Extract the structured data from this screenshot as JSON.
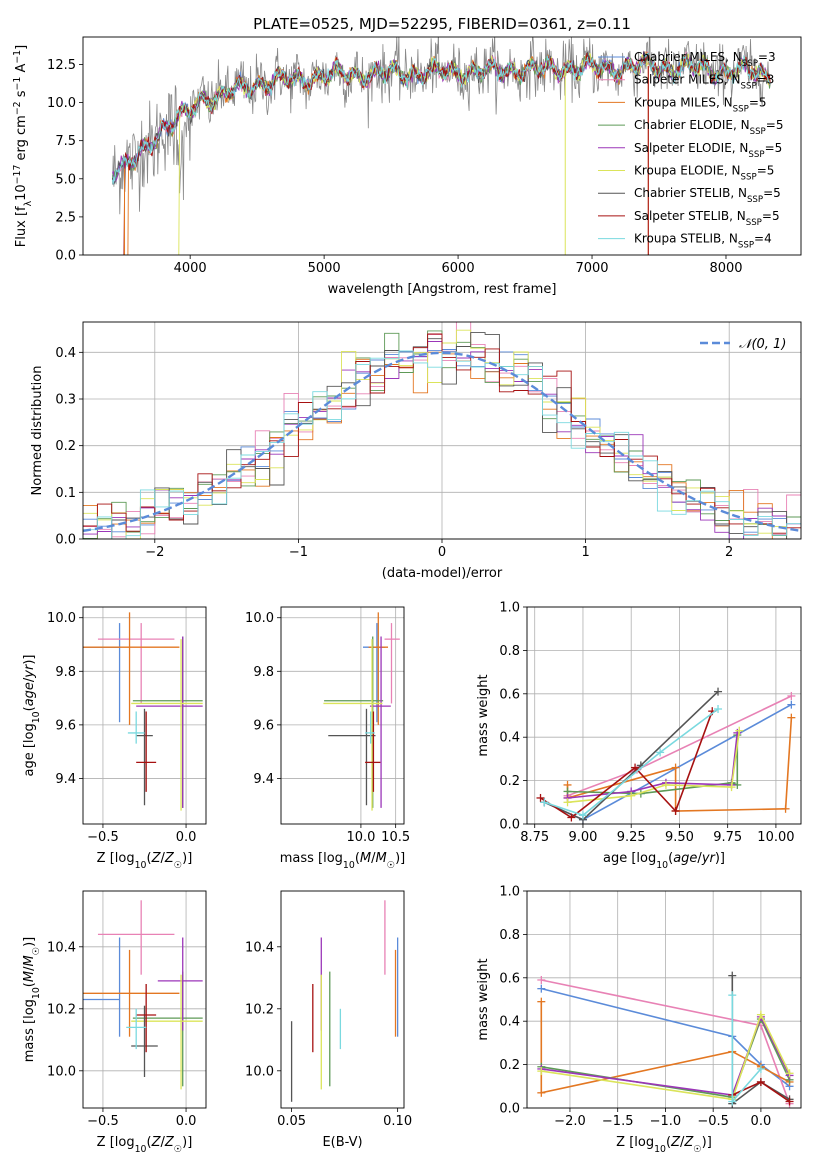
{
  "colors": {
    "blue": "#5b8bd9",
    "orange": "#e37722",
    "green": "#5e9a57",
    "purple": "#9b36b8",
    "yellow": "#dbe45a",
    "gray": "#555555",
    "red": "#a61111",
    "cyan": "#7ad9df",
    "pink": "#e882b5",
    "data": "#888888",
    "grid": "#b0b0b0"
  },
  "chart_data": [
    {
      "id": "spectrum",
      "type": "line",
      "title": "PLATE=0525, MJD=52295, FIBERID=0361, z=0.11",
      "xlabel": "wavelength [Angstrom, rest frame]",
      "ylabel": "Flux [f_λ10^-17 erg cm^-2 s^-1 A^-1]",
      "xlim": [
        3200,
        8560
      ],
      "ylim": [
        0,
        14.3
      ],
      "xticks": [
        4000,
        5000,
        6000,
        7000,
        8000
      ],
      "yticks": [
        0.0,
        2.5,
        5.0,
        7.5,
        10.0,
        12.5
      ],
      "grid": false,
      "legend_position": "right",
      "legend": [
        {
          "main": "Chabrier MILES, N",
          "sub": "SSP",
          "tail": "=3",
          "color": "blue"
        },
        {
          "main": "Salpeter MILES, N",
          "sub": "SSP",
          "tail": "=3",
          "color": "pink"
        },
        {
          "main": "Kroupa MILES, N",
          "sub": "SSP",
          "tail": "=5",
          "color": "orange"
        },
        {
          "main": "Chabrier ELODIE, N",
          "sub": "SSP",
          "tail": "=5",
          "color": "green"
        },
        {
          "main": "Salpeter ELODIE, N",
          "sub": "SSP",
          "tail": "=5",
          "color": "purple"
        },
        {
          "main": "Kroupa ELODIE, N",
          "sub": "SSP",
          "tail": "=5",
          "color": "yellow"
        },
        {
          "main": "Chabrier STELIB, N",
          "sub": "SSP",
          "tail": "=5",
          "color": "gray"
        },
        {
          "main": "Salpeter STELIB, N",
          "sub": "SSP",
          "tail": "=5",
          "color": "red"
        },
        {
          "main": "Kroupa STELIB, N",
          "sub": "SSP",
          "tail": "=4",
          "color": "cyan"
        }
      ],
      "continuum": {
        "x": [
          3420,
          3500,
          3600,
          3700,
          3800,
          3900,
          4000,
          4100,
          4200,
          4300,
          4400,
          4500,
          4600,
          4700,
          4800,
          4900,
          5000,
          5200,
          5400,
          5600,
          5800,
          6000,
          6200,
          6400,
          6600,
          6800,
          7000,
          7200,
          7400,
          7600,
          7800,
          8000,
          8200,
          8330
        ],
        "y": [
          5.5,
          5.6,
          6.3,
          7.5,
          8.3,
          8.7,
          9.5,
          10.4,
          10.3,
          10.6,
          11.0,
          11.3,
          11.3,
          11.4,
          11.5,
          11.7,
          11.7,
          11.9,
          11.8,
          12.0,
          11.9,
          12.1,
          12.0,
          12.2,
          12.1,
          12.3,
          12.2,
          12.3,
          12.4,
          12.3,
          12.2,
          12.1,
          12.0,
          11.8
        ]
      },
      "models_start": {
        "Salpeter STELIB": 3510,
        "Kroupa MILES": 3540,
        "Kroupa STELIB": 3420,
        "Kroupa ELODIE": 3920
      }
    },
    {
      "id": "residuals",
      "type": "histogram",
      "xlabel": "(data-model)/error",
      "ylabel": "Normed distribution",
      "xlim": [
        -2.5,
        2.5
      ],
      "ylim": [
        0,
        0.465
      ],
      "xticks": [
        -2,
        -1,
        0,
        1,
        2
      ],
      "yticks": [
        0.0,
        0.1,
        0.2,
        0.3,
        0.4
      ],
      "grid": true,
      "legend_position": "top-right",
      "legend": "𝒩(0, 1)",
      "bin_width": 0.1,
      "bin_start": -2.5
    },
    {
      "id": "age-vs-Z",
      "type": "errorbar",
      "xlabel": "Z [log10(Z/Z☉)]",
      "ylabel": "age [log10(age/yr)]",
      "xlim": [
        -0.62,
        0.12
      ],
      "ylim": [
        9.23,
        10.04
      ],
      "xticks": [
        -0.5,
        0.0
      ],
      "yticks": [
        9.4,
        9.6,
        9.8,
        10.0
      ],
      "grid": true,
      "points": [
        {
          "color": "blue",
          "x": -0.4,
          "xerr": [
            0.22,
            0.0
          ],
          "y": 9.89,
          "yerr": [
            0.28,
            0.09
          ]
        },
        {
          "color": "pink",
          "x": -0.27,
          "xerr": [
            0.26,
            0.2
          ],
          "y": 9.92,
          "yerr": [
            0.24,
            0.06
          ]
        },
        {
          "color": "orange",
          "x": -0.34,
          "xerr": [
            0.28,
            0.3
          ],
          "y": 9.89,
          "yerr": [
            0.29,
            0.13
          ]
        },
        {
          "color": "green",
          "x": -0.02,
          "xerr": [
            0.3,
            0.12
          ],
          "y": 9.69,
          "yerr": [
            0.4,
            0.24
          ]
        },
        {
          "color": "purple",
          "x": -0.02,
          "xerr": [
            0.28,
            0.12
          ],
          "y": 9.67,
          "yerr": [
            0.38,
            0.26
          ]
        },
        {
          "color": "yellow",
          "x": -0.03,
          "xerr": [
            0.3,
            0.13
          ],
          "y": 9.68,
          "yerr": [
            0.4,
            0.24
          ]
        },
        {
          "color": "gray",
          "x": -0.25,
          "xerr": [
            0.05,
            0.05
          ],
          "y": 9.56,
          "yerr": [
            0.26,
            0.1
          ]
        },
        {
          "color": "red",
          "x": -0.24,
          "xerr": [
            0.06,
            0.06
          ],
          "y": 9.46,
          "yerr": [
            0.11,
            0.19
          ]
        },
        {
          "color": "cyan",
          "x": -0.3,
          "xerr": [
            0.05,
            0.05
          ],
          "y": 9.57,
          "yerr": [
            0.04,
            0.08
          ]
        }
      ]
    },
    {
      "id": "age-vs-mass",
      "type": "errorbar",
      "xlabel": "mass [log10(M/M☉)]",
      "ylabel": "",
      "xlim": [
        8.85,
        10.62
      ],
      "ylim": [
        9.23,
        10.04
      ],
      "xticks": [
        10.0,
        10.5
      ],
      "yticks": [
        9.4,
        9.6,
        9.8,
        10.0
      ],
      "grid": true,
      "points": [
        {
          "color": "blue",
          "x": 10.23,
          "xerr": [
            0.2,
            0.12
          ],
          "y": 9.89,
          "yerr": [
            0.28,
            0.09
          ]
        },
        {
          "color": "pink",
          "x": 10.44,
          "xerr": [
            0.1,
            0.12
          ],
          "y": 9.92,
          "yerr": [
            0.24,
            0.06
          ]
        },
        {
          "color": "orange",
          "x": 10.25,
          "xerr": [
            0.14,
            0.14
          ],
          "y": 9.89,
          "yerr": [
            0.29,
            0.13
          ]
        },
        {
          "color": "green",
          "x": 10.17,
          "xerr": [
            0.7,
            0.15
          ],
          "y": 9.69,
          "yerr": [
            0.4,
            0.24
          ]
        },
        {
          "color": "purple",
          "x": 10.29,
          "xerr": [
            0.16,
            0.14
          ],
          "y": 9.67,
          "yerr": [
            0.38,
            0.26
          ]
        },
        {
          "color": "yellow",
          "x": 10.16,
          "xerr": [
            0.7,
            0.15
          ],
          "y": 9.68,
          "yerr": [
            0.4,
            0.24
          ]
        },
        {
          "color": "gray",
          "x": 10.08,
          "xerr": [
            0.55,
            0.13
          ],
          "y": 9.56,
          "yerr": [
            0.26,
            0.1
          ]
        },
        {
          "color": "red",
          "x": 10.18,
          "xerr": [
            0.12,
            0.1
          ],
          "y": 9.46,
          "yerr": [
            0.11,
            0.19
          ]
        },
        {
          "color": "cyan",
          "x": 10.14,
          "xerr": [
            0.08,
            0.06
          ],
          "y": 9.57,
          "yerr": [
            0.04,
            0.08
          ]
        }
      ]
    },
    {
      "id": "mass-vs-Z",
      "type": "errorbar",
      "xlabel": "Z [log10(Z/Z☉)]",
      "ylabel": "mass [log10(M/M☉)]",
      "xlim": [
        -0.62,
        0.12
      ],
      "ylim": [
        9.88,
        10.58
      ],
      "xticks": [
        -0.5,
        0.0
      ],
      "yticks": [
        10.0,
        10.2,
        10.4
      ],
      "grid": true,
      "points": [
        {
          "color": "blue",
          "x": -0.4,
          "xerr": [
            0.22,
            0.0
          ],
          "y": 10.23,
          "yerr": [
            0.12,
            0.2
          ]
        },
        {
          "color": "pink",
          "x": -0.27,
          "xerr": [
            0.26,
            0.2
          ],
          "y": 10.44,
          "yerr": [
            0.13,
            0.11
          ]
        },
        {
          "color": "orange",
          "x": -0.34,
          "xerr": [
            0.28,
            0.3
          ],
          "y": 10.25,
          "yerr": [
            0.14,
            0.14
          ]
        },
        {
          "color": "green",
          "x": -0.02,
          "xerr": [
            0.3,
            0.12
          ],
          "y": 10.17,
          "yerr": [
            0.22,
            0.15
          ]
        },
        {
          "color": "purple",
          "x": -0.02,
          "xerr": [
            0.15,
            0.12
          ],
          "y": 10.29,
          "yerr": [
            0.16,
            0.14
          ]
        },
        {
          "color": "yellow",
          "x": -0.03,
          "xerr": [
            0.3,
            0.13
          ],
          "y": 10.16,
          "yerr": [
            0.22,
            0.15
          ]
        },
        {
          "color": "gray",
          "x": -0.25,
          "xerr": [
            0.08,
            0.08
          ],
          "y": 10.08,
          "yerr": [
            0.1,
            0.13
          ]
        },
        {
          "color": "red",
          "x": -0.24,
          "xerr": [
            0.06,
            0.06
          ],
          "y": 10.18,
          "yerr": [
            0.12,
            0.1
          ]
        },
        {
          "color": "cyan",
          "x": -0.3,
          "xerr": [
            0.06,
            0.06
          ],
          "y": 10.14,
          "yerr": [
            0.07,
            0.06
          ]
        }
      ]
    },
    {
      "id": "mass-vs-EBV",
      "type": "errorbar",
      "xlabel": "E(B-V)",
      "ylabel": "",
      "xlim": [
        0.045,
        0.103
      ],
      "ylim": [
        9.88,
        10.58
      ],
      "xticks": [
        0.05,
        0.1
      ],
      "yticks": [
        10.0,
        10.2,
        10.4
      ],
      "grid": false,
      "points": [
        {
          "color": "blue",
          "x": 0.1,
          "y": 10.23,
          "yerr": [
            0.12,
            0.2
          ]
        },
        {
          "color": "pink",
          "x": 0.094,
          "y": 10.44,
          "yerr": [
            0.13,
            0.11
          ]
        },
        {
          "color": "orange",
          "x": 0.099,
          "y": 10.25,
          "yerr": [
            0.14,
            0.14
          ]
        },
        {
          "color": "green",
          "x": 0.068,
          "y": 10.17,
          "yerr": [
            0.22,
            0.15
          ]
        },
        {
          "color": "purple",
          "x": 0.064,
          "y": 10.29,
          "yerr": [
            0.16,
            0.14
          ]
        },
        {
          "color": "yellow",
          "x": 0.064,
          "y": 10.16,
          "yerr": [
            0.22,
            0.15
          ]
        },
        {
          "color": "gray",
          "x": 0.05,
          "y": 10.08,
          "yerr": [
            0.18,
            0.08
          ]
        },
        {
          "color": "red",
          "x": 0.06,
          "y": 10.18,
          "yerr": [
            0.12,
            0.1
          ]
        },
        {
          "color": "cyan",
          "x": 0.073,
          "y": 10.14,
          "yerr": [
            0.07,
            0.06
          ]
        }
      ]
    },
    {
      "id": "weight-vs-age",
      "type": "line",
      "xlabel": "age [log10(age/yr)]",
      "ylabel": "mass weight",
      "xlim": [
        8.71,
        10.13
      ],
      "ylim": [
        0,
        1
      ],
      "xticks": [
        8.75,
        9.0,
        9.25,
        9.5,
        9.75,
        10.0
      ],
      "yticks": [
        0.0,
        0.2,
        0.4,
        0.6,
        0.8,
        1.0
      ],
      "grid": true,
      "series": [
        {
          "color": "blue",
          "x": [
            8.8,
            9.0,
            10.08
          ],
          "y": [
            0.1,
            0.02,
            0.55
          ]
        },
        {
          "color": "pink",
          "x": [
            8.92,
            9.28,
            10.08
          ],
          "y": [
            0.13,
            0.25,
            0.59
          ]
        },
        {
          "color": "orange",
          "x": [
            10.08,
            10.05,
            9.48,
            9.48,
            8.92,
            8.92
          ],
          "y": [
            0.49,
            0.07,
            0.06,
            0.26,
            0.12,
            0.18
          ]
        },
        {
          "color": "green",
          "x": [
            8.92,
            9.3,
            9.77,
            9.8,
            9.8
          ],
          "y": [
            0.15,
            0.14,
            0.19,
            0.18,
            0.41
          ]
        },
        {
          "color": "purple",
          "x": [
            8.92,
            9.25,
            9.43,
            9.77,
            9.8
          ],
          "y": [
            0.12,
            0.15,
            0.19,
            0.18,
            0.42
          ]
        },
        {
          "color": "yellow",
          "x": [
            8.92,
            9.25,
            9.43,
            9.77,
            9.81
          ],
          "y": [
            0.1,
            0.13,
            0.18,
            0.17,
            0.43
          ]
        },
        {
          "color": "gray",
          "x": [
            8.8,
            9.0,
            9.3,
            9.7
          ],
          "y": [
            0.1,
            0.02,
            0.27,
            0.61
          ]
        },
        {
          "color": "red",
          "x": [
            8.78,
            8.94,
            9.27,
            9.48,
            9.67
          ],
          "y": [
            0.12,
            0.03,
            0.26,
            0.06,
            0.52
          ]
        },
        {
          "color": "cyan",
          "x": [
            8.8,
            9.0,
            9.4,
            9.7
          ],
          "y": [
            0.1,
            0.04,
            0.33,
            0.53
          ]
        }
      ]
    },
    {
      "id": "weight-vs-Z",
      "type": "line",
      "xlabel": "Z [log10(Z/Z☉)]",
      "ylabel": "mass weight",
      "xlim": [
        -2.45,
        0.42
      ],
      "ylim": [
        0,
        1
      ],
      "xticks": [
        -2.0,
        -1.5,
        -1.0,
        -0.5,
        0.0
      ],
      "yticks": [
        0.0,
        0.2,
        0.4,
        0.6,
        0.8,
        1.0
      ],
      "grid": true,
      "series": [
        {
          "color": "blue",
          "x": [
            -2.3,
            -0.3,
            0.0,
            0.3
          ],
          "y": [
            0.55,
            0.33,
            0.2,
            0.1
          ]
        },
        {
          "color": "pink",
          "x": [
            -2.3,
            0.0,
            0.3
          ],
          "y": [
            0.59,
            0.38,
            0.02
          ]
        },
        {
          "color": "orange",
          "x": [
            -2.3,
            -2.3,
            -0.3,
            0.0,
            0.3
          ],
          "y": [
            0.49,
            0.07,
            0.26,
            0.19,
            0.12
          ]
        },
        {
          "color": "green",
          "x": [
            -2.3,
            -0.3,
            0.0,
            0.3
          ],
          "y": [
            0.19,
            0.05,
            0.41,
            0.13
          ]
        },
        {
          "color": "purple",
          "x": [
            -2.3,
            -0.3,
            0.0,
            0.3
          ],
          "y": [
            0.18,
            0.06,
            0.42,
            0.15
          ]
        },
        {
          "color": "yellow",
          "x": [
            -2.3,
            -0.3,
            0.0,
            0.3
          ],
          "y": [
            0.17,
            0.04,
            0.43,
            0.16
          ]
        },
        {
          "color": "gray",
          "x": [
            -0.3,
            -0.3,
            0.0,
            0.3
          ],
          "y": [
            0.61,
            0.02,
            0.12,
            0.04
          ]
        },
        {
          "color": "red",
          "x": [
            -0.3,
            0.0,
            0.3
          ],
          "y": [
            0.06,
            0.12,
            0.03
          ]
        },
        {
          "color": "cyan",
          "x": [
            -0.3,
            -0.3,
            0.0
          ],
          "y": [
            0.52,
            0.03,
            0.18
          ]
        }
      ]
    }
  ]
}
